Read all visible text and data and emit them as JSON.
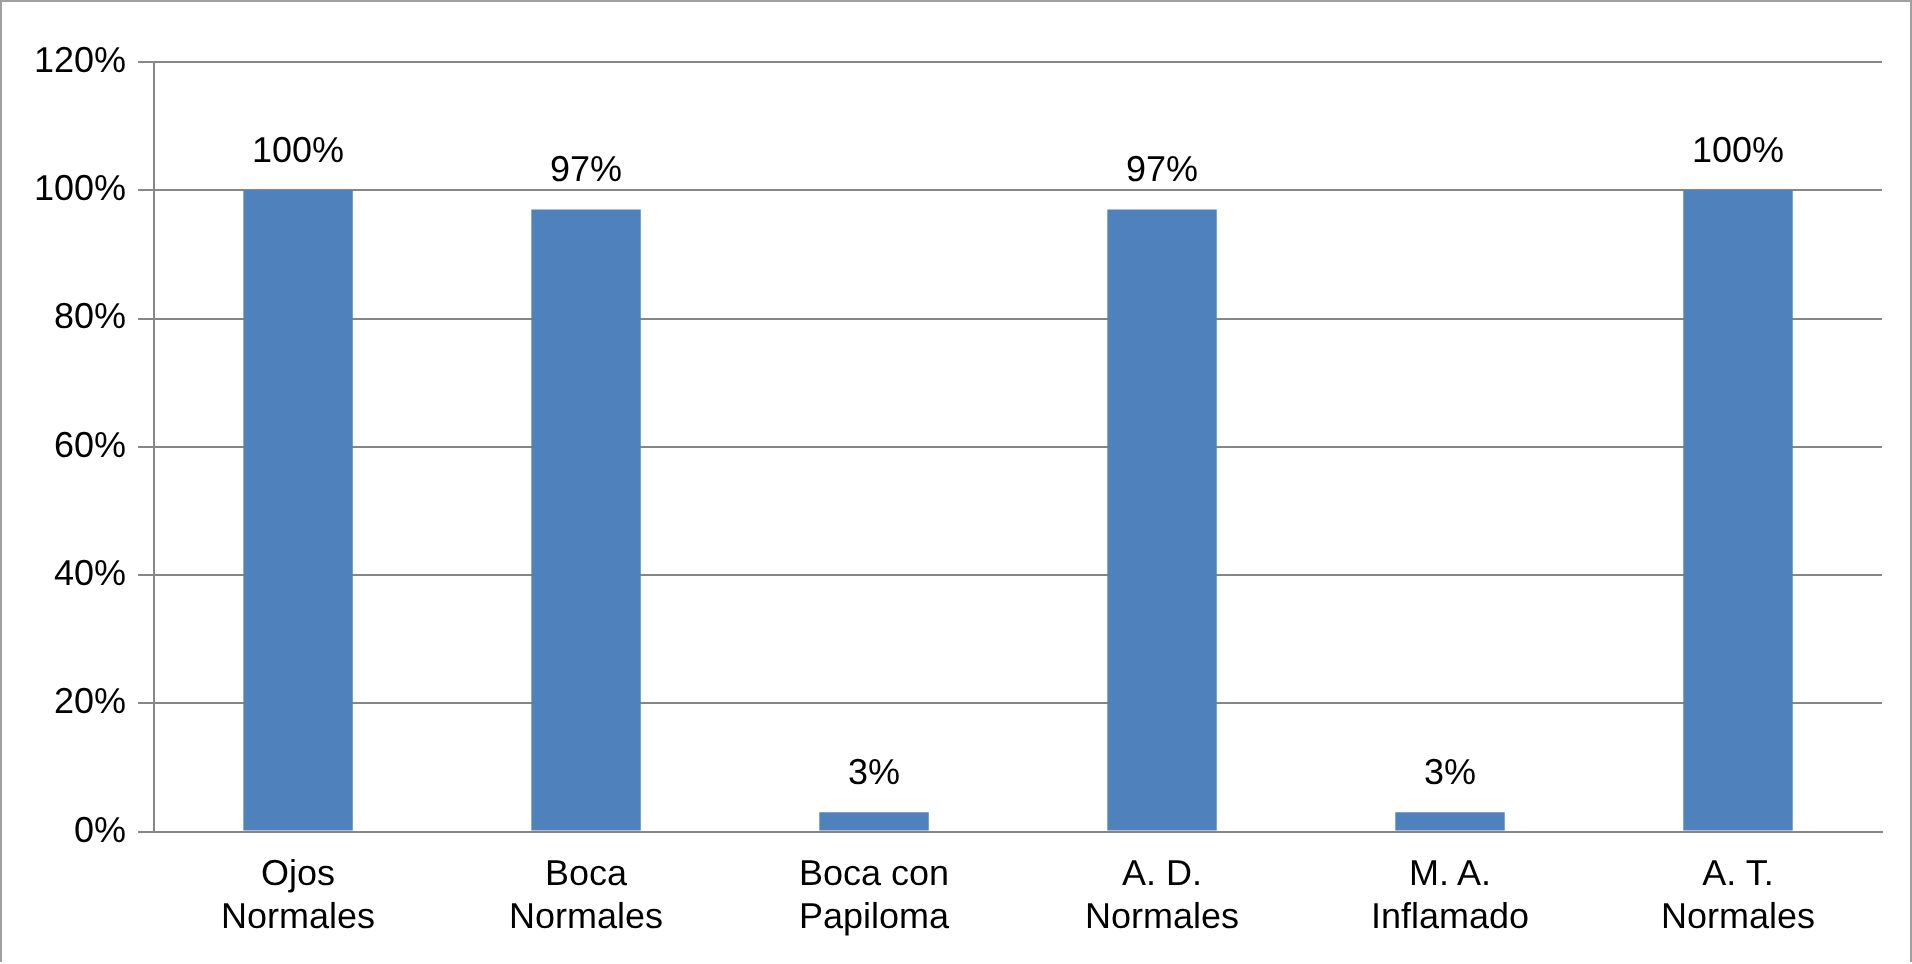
{
  "chart_data": {
    "type": "bar",
    "categories": [
      "Ojos\nNormales",
      "Boca\nNormales",
      "Boca con\nPapiloma",
      "A. D.\nNormales",
      "M. A.\nInflamado",
      "A. T.\nNormales"
    ],
    "values": [
      100,
      97,
      3,
      97,
      3,
      100
    ],
    "value_labels": [
      "100%",
      "97%",
      "3%",
      "97%",
      "3%",
      "100%"
    ],
    "color": "#4f81bd",
    "ylim": [
      0,
      120
    ],
    "yticks": [
      {
        "value": 0,
        "label": "0%"
      },
      {
        "value": 20,
        "label": "20%"
      },
      {
        "value": 40,
        "label": "40%"
      },
      {
        "value": 60,
        "label": "60%"
      },
      {
        "value": 80,
        "label": "80%"
      },
      {
        "value": 100,
        "label": "100%"
      },
      {
        "value": 120,
        "label": "120%"
      }
    ],
    "grid": "y",
    "legend": false
  }
}
